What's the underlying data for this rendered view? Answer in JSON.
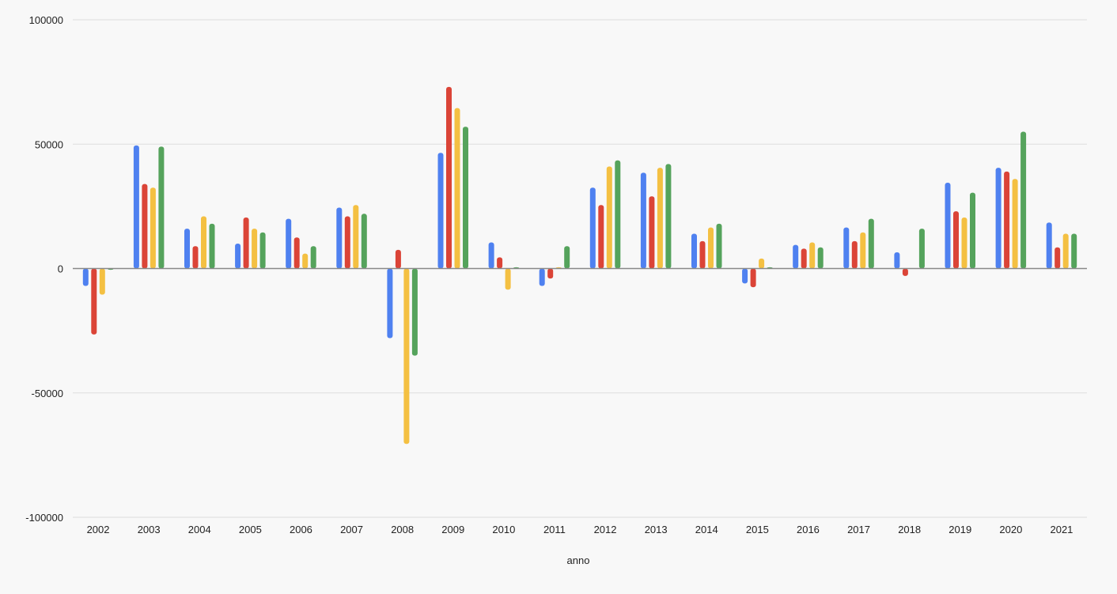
{
  "chart_data": {
    "type": "bar",
    "title": "",
    "xlabel": "anno",
    "ylabel": "",
    "ylim": [
      -100000,
      100000
    ],
    "yticks": [
      100000,
      50000,
      0,
      -50000,
      -100000
    ],
    "ytick_labels": [
      "100000",
      "50000",
      "0",
      "-50000",
      "-100000"
    ],
    "grid": true,
    "legend": "none",
    "categories": [
      "2002",
      "2003",
      "2004",
      "2005",
      "2006",
      "2007",
      "2008",
      "2009",
      "2010",
      "2011",
      "2012",
      "2013",
      "2014",
      "2015",
      "2016",
      "2017",
      "2018",
      "2019",
      "2020",
      "2021"
    ],
    "series": [
      {
        "color": "#4f81f0",
        "values": [
          -7000,
          49500,
          16000,
          10000,
          20000,
          24500,
          -28000,
          46500,
          10500,
          -7000,
          32500,
          38500,
          14000,
          -6000,
          9500,
          16500,
          6500,
          34500,
          40500,
          18500
        ]
      },
      {
        "color": "#db4437",
        "values": [
          -26500,
          34000,
          9000,
          20500,
          12500,
          21000,
          7500,
          73000,
          4500,
          -4000,
          25500,
          29000,
          11000,
          -7500,
          8000,
          11000,
          -3000,
          23000,
          39000,
          8500
        ]
      },
      {
        "color": "#f4c042",
        "values": [
          -10500,
          32500,
          21000,
          16000,
          6000,
          25500,
          -70500,
          64500,
          -8500,
          500,
          41000,
          40500,
          16500,
          4000,
          10500,
          14500,
          0,
          20500,
          36000,
          14000
        ]
      },
      {
        "color": "#55a35c",
        "values": [
          -500,
          49000,
          18000,
          14500,
          9000,
          22000,
          -35000,
          57000,
          500,
          9000,
          43500,
          42000,
          18000,
          500,
          8500,
          20000,
          16000,
          30500,
          55000,
          14000
        ]
      }
    ]
  }
}
